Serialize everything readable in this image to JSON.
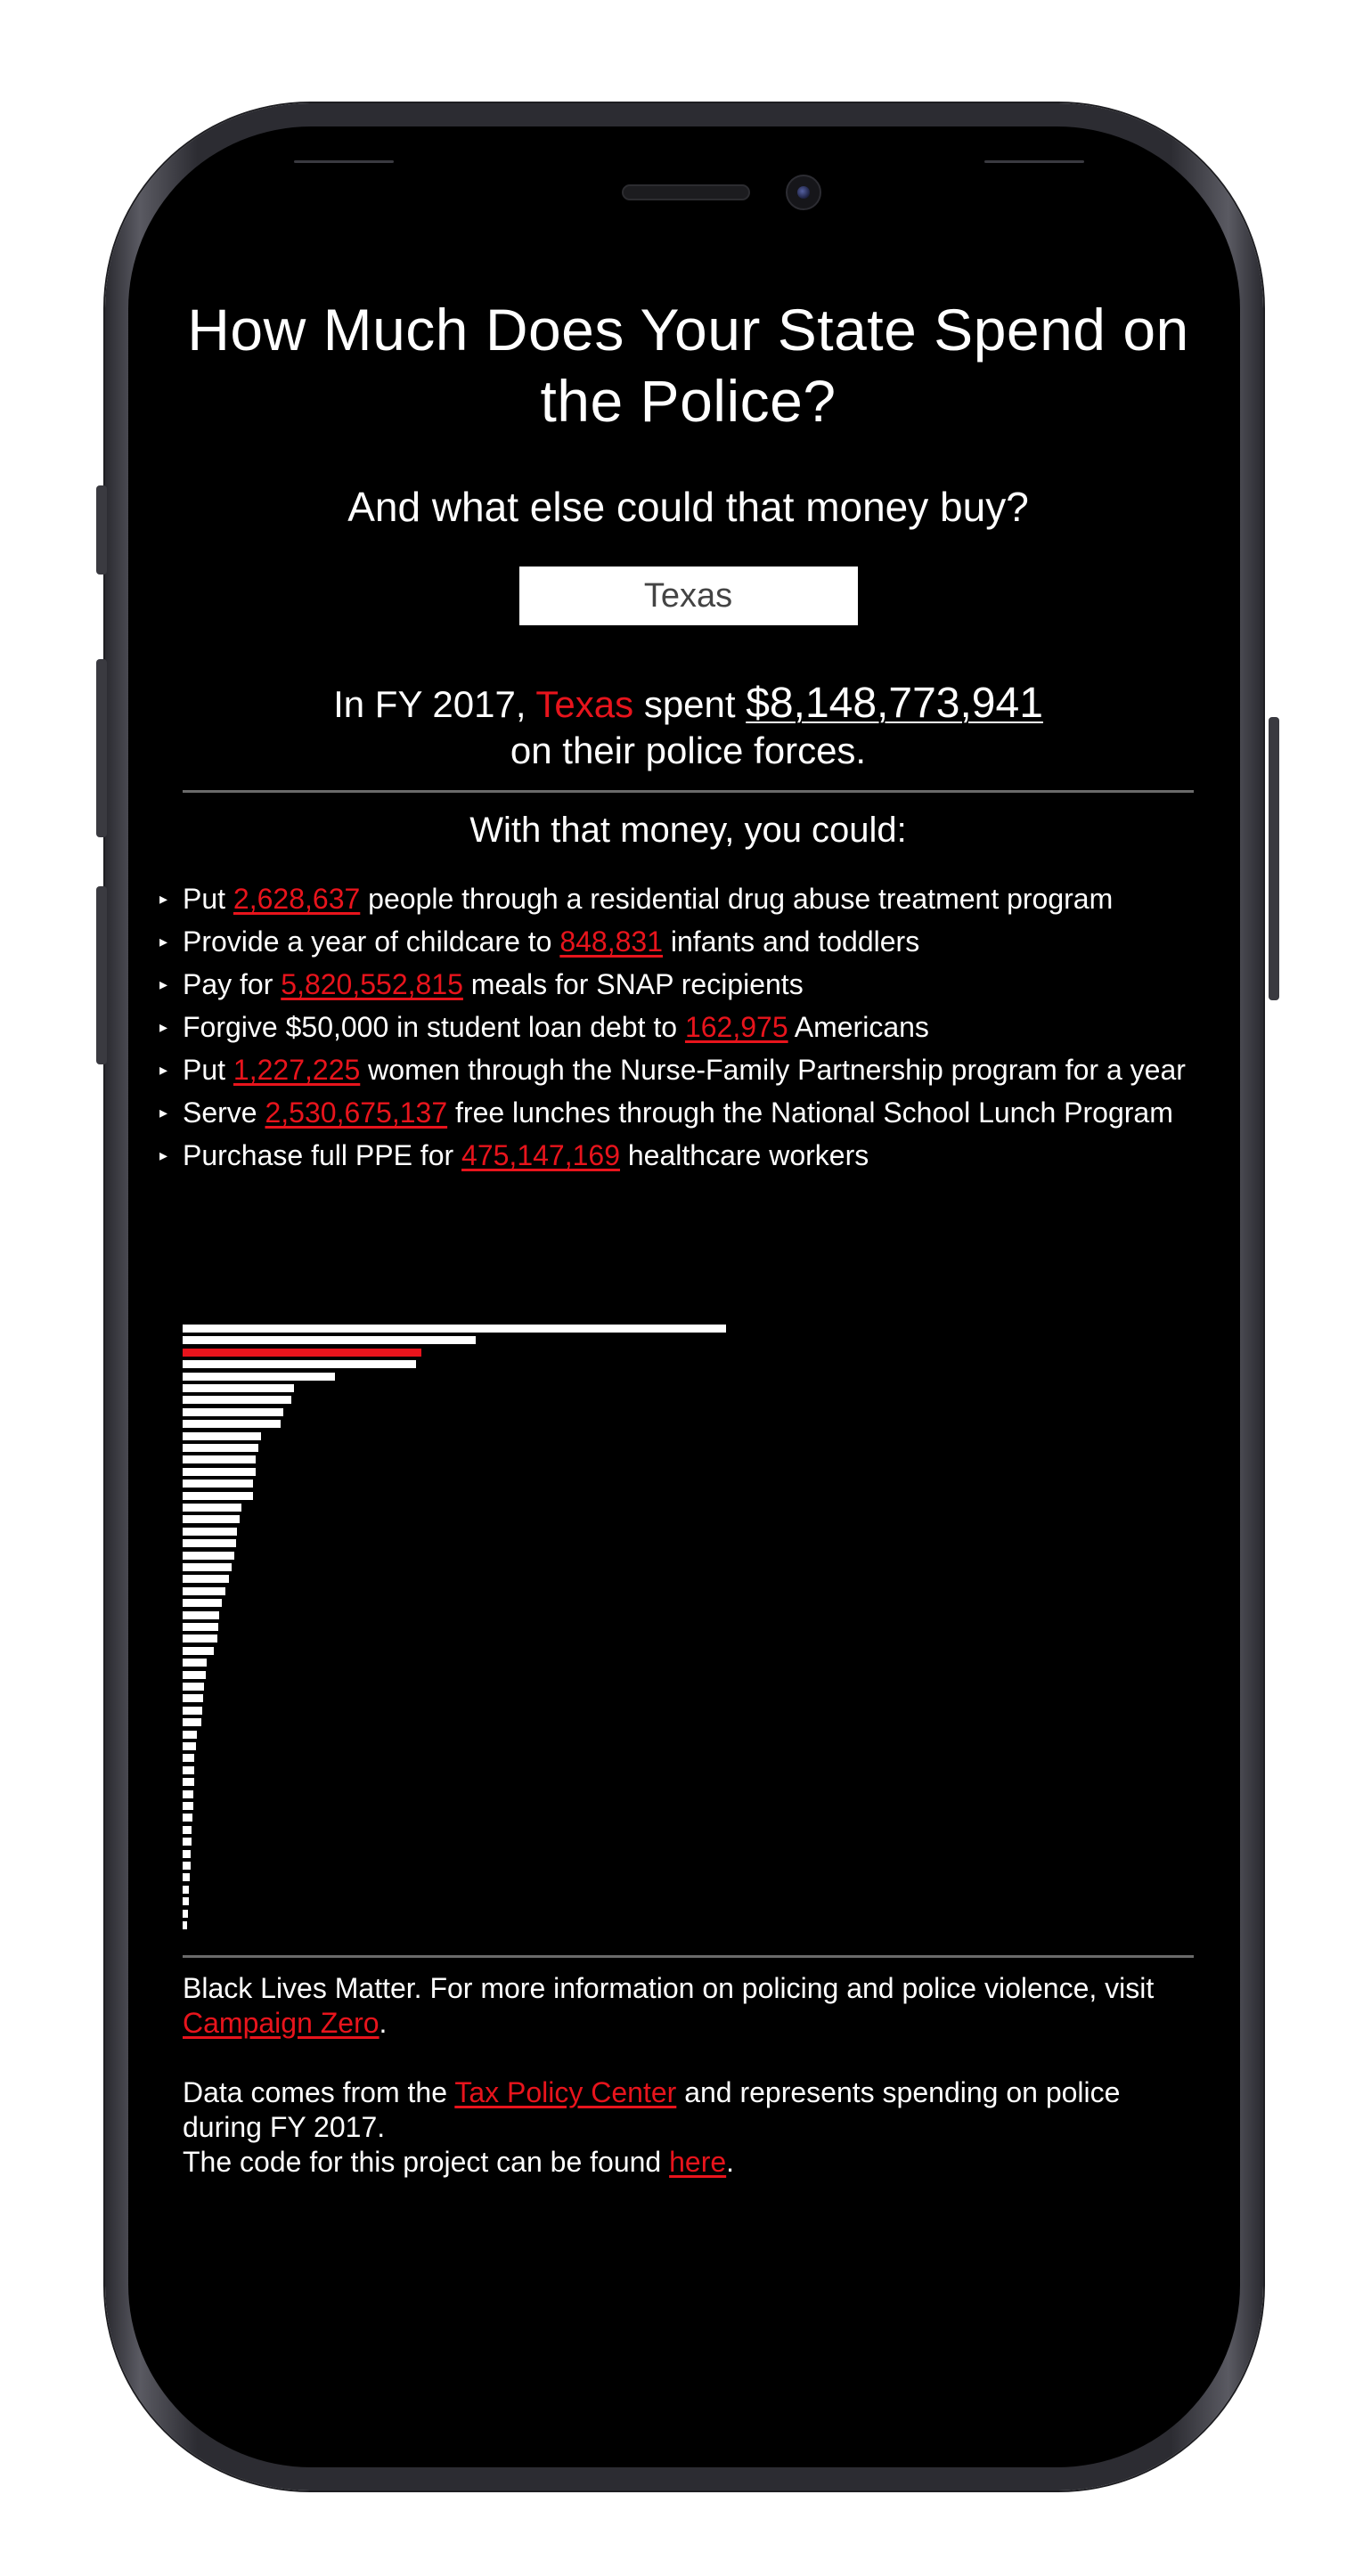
{
  "header": {
    "title": "How Much Does Your State Spend on the Police?",
    "subtitle": "And what else could that money buy?"
  },
  "state_select": {
    "selected": "Texas"
  },
  "summary": {
    "prefix": "In FY 2017,",
    "state": "Texas",
    "verb": "spent",
    "amount": "$8,148,773,941",
    "suffix": "on their police forces."
  },
  "alternatives": {
    "heading": "With that money, you could:",
    "items": [
      {
        "before": "Put ",
        "value": "2,628,637",
        "after": " people through a residential drug abuse treatment program"
      },
      {
        "before": "Provide a year of childcare to ",
        "value": "848,831",
        "after": " infants and toddlers"
      },
      {
        "before": "Pay for ",
        "value": "5,820,552,815",
        "after": " meals for SNAP recipients"
      },
      {
        "before": "Forgive $50,000 in student loan debt to ",
        "value": "162,975",
        "after": " Americans"
      },
      {
        "before": "Put ",
        "value": "1,227,225",
        "after": " women through the Nurse-Family Partnership program for a year"
      },
      {
        "before": "Serve ",
        "value": "2,530,675,137",
        "after": " free lunches through the National School Lunch Program"
      },
      {
        "before": "Purchase full PPE for ",
        "value": "475,147,169",
        "after": " healthcare workers"
      }
    ]
  },
  "chart_data": {
    "type": "bar",
    "orientation": "horizontal",
    "highlight_index": 2,
    "highlight_color": "#e8141c",
    "bar_color": "#ffffff",
    "values": [
      1.0,
      0.54,
      0.44,
      0.43,
      0.28,
      0.205,
      0.2,
      0.185,
      0.18,
      0.145,
      0.14,
      0.135,
      0.135,
      0.13,
      0.13,
      0.108,
      0.105,
      0.1,
      0.098,
      0.095,
      0.09,
      0.085,
      0.078,
      0.072,
      0.068,
      0.066,
      0.064,
      0.058,
      0.045,
      0.043,
      0.04,
      0.038,
      0.036,
      0.034,
      0.026,
      0.024,
      0.022,
      0.022,
      0.021,
      0.02,
      0.019,
      0.018,
      0.017,
      0.016,
      0.015,
      0.014,
      0.013,
      0.012,
      0.011,
      0.01,
      0.009
    ]
  },
  "footer": {
    "blm_text": "Black Lives Matter. For more information on policing and police violence, visit ",
    "blm_link": "Campaign Zero",
    "blm_end": ".",
    "data_text": "Data comes from the ",
    "data_link": "Tax Policy Center",
    "data_end": " and represents spending on police during FY 2017.",
    "code_text": "The code for this project can be found ",
    "code_link": "here",
    "code_end": "."
  },
  "colors": {
    "accent": "#e8141c",
    "background": "#000000",
    "text": "#ffffff"
  }
}
